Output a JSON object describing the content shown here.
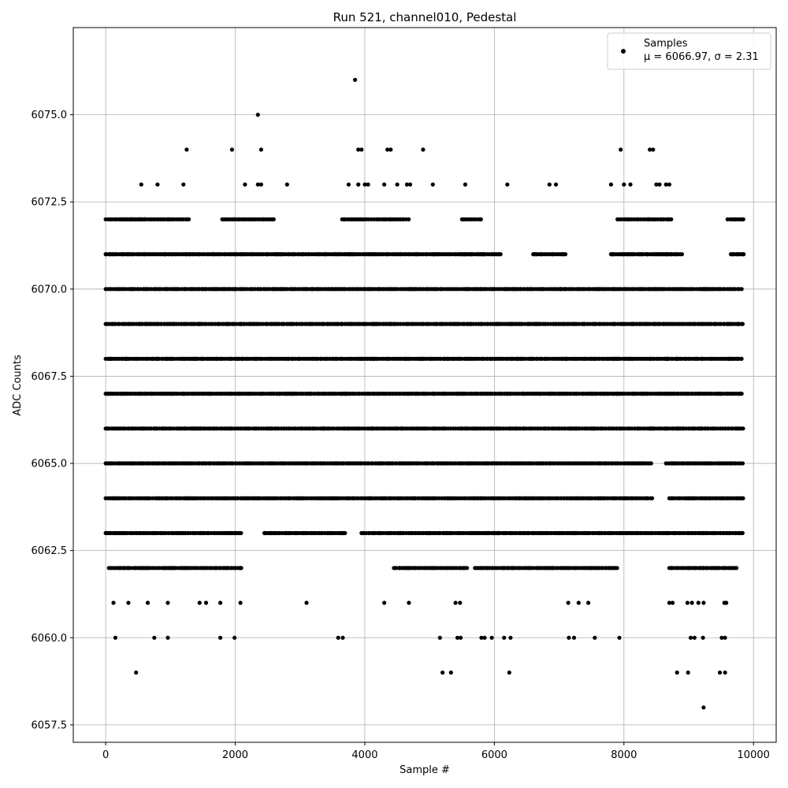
{
  "chart_data": {
    "type": "scatter",
    "title": "Run 521, channel010, Pedestal",
    "xlabel": "Sample #",
    "ylabel": "ADC Counts",
    "xlim": [
      -500,
      10350
    ],
    "ylim": [
      6057.0,
      6077.5
    ],
    "xticks": [
      0,
      2000,
      4000,
      6000,
      8000,
      10000
    ],
    "xtick_labels": [
      "0",
      "2000",
      "4000",
      "6000",
      "8000",
      "10000"
    ],
    "yticks": [
      6057.5,
      6060.0,
      6062.5,
      6065.0,
      6067.5,
      6070.0,
      6072.5,
      6075.0
    ],
    "ytick_labels": [
      "6057.5",
      "6060.0",
      "6062.5",
      "6065.0",
      "6067.5",
      "6070.0",
      "6072.5",
      "6075.0"
    ],
    "grid": true,
    "legend_position": "top-right",
    "marker_color": "#000000",
    "series": [
      {
        "name": "Samples",
        "stats_label": "μ = 6066.97, σ = 2.31",
        "levels": [
          {
            "y": 6070,
            "x_ranges": [
              [
                0,
                9850
              ]
            ]
          },
          {
            "y": 6069,
            "x_ranges": [
              [
                0,
                9850
              ]
            ]
          },
          {
            "y": 6068,
            "x_ranges": [
              [
                0,
                9850
              ]
            ]
          },
          {
            "y": 6067,
            "x_ranges": [
              [
                0,
                9850
              ]
            ]
          },
          {
            "y": 6066,
            "x_ranges": [
              [
                0,
                9850
              ]
            ]
          },
          {
            "y": 6065,
            "x_ranges": [
              [
                0,
                8450
              ],
              [
                8650,
                9850
              ]
            ]
          },
          {
            "y": 6064,
            "x_ranges": [
              [
                0,
                8450
              ],
              [
                8700,
                9850
              ]
            ]
          },
          {
            "y": 6063,
            "x_ranges": [
              [
                0,
                2100
              ],
              [
                2450,
                3700
              ],
              [
                3950,
                4550
              ],
              [
                4550,
                8900
              ],
              [
                8900,
                9850
              ]
            ]
          },
          {
            "y": 6072,
            "x_ranges": [
              [
                0,
                600
              ],
              [
                250,
                1300
              ],
              [
                1800,
                2600
              ],
              [
                3650,
                4700
              ],
              [
                5500,
                5800
              ],
              [
                7900,
                8750
              ],
              [
                9600,
                9850
              ]
            ]
          },
          {
            "y": 6071,
            "x_ranges": [
              [
                0,
                2100
              ],
              [
                2100,
                5600
              ],
              [
                5500,
                6100
              ],
              [
                6600,
                7100
              ],
              [
                7800,
                8900
              ],
              [
                9650,
                9850
              ]
            ]
          },
          {
            "y": 6062,
            "x_ranges": [
              [
                50,
                2100
              ],
              [
                4450,
                5600
              ],
              [
                5700,
                6800
              ],
              [
                6800,
                7900
              ],
              [
                8700,
                9750
              ]
            ]
          }
        ],
        "sparse_points": [
          [
            550,
            6073
          ],
          [
            800,
            6073
          ],
          [
            1200,
            6073
          ],
          [
            1250,
            6074
          ],
          [
            1950,
            6074
          ],
          [
            2150,
            6073
          ],
          [
            2350,
            6073
          ],
          [
            2400,
            6073
          ],
          [
            2350,
            6075
          ],
          [
            2400,
            6074
          ],
          [
            2800,
            6073
          ],
          [
            3750,
            6073
          ],
          [
            3850,
            6076
          ],
          [
            3900,
            6074
          ],
          [
            3950,
            6074
          ],
          [
            3900,
            6073
          ],
          [
            4000,
            6073
          ],
          [
            4050,
            6073
          ],
          [
            4300,
            6073
          ],
          [
            4350,
            6074
          ],
          [
            4400,
            6074
          ],
          [
            4500,
            6073
          ],
          [
            4650,
            6073
          ],
          [
            4700,
            6073
          ],
          [
            4900,
            6074
          ],
          [
            5050,
            6073
          ],
          [
            5550,
            6073
          ],
          [
            6200,
            6073
          ],
          [
            6850,
            6073
          ],
          [
            6950,
            6073
          ],
          [
            7800,
            6073
          ],
          [
            7950,
            6074
          ],
          [
            8000,
            6073
          ],
          [
            8100,
            6073
          ],
          [
            8400,
            6074
          ],
          [
            8450,
            6074
          ],
          [
            8500,
            6073
          ],
          [
            8550,
            6073
          ],
          [
            8650,
            6073
          ],
          [
            8700,
            6073
          ],
          [
            120,
            6061
          ],
          [
            650,
            6061
          ],
          [
            960,
            6061
          ],
          [
            1450,
            6061
          ],
          [
            1550,
            6061
          ],
          [
            1770,
            6061
          ],
          [
            2080,
            6061
          ],
          [
            3100,
            6061
          ],
          [
            4680,
            6061
          ],
          [
            5400,
            6061
          ],
          [
            5470,
            6061
          ],
          [
            7140,
            6061
          ],
          [
            7300,
            6061
          ],
          [
            7450,
            6061
          ],
          [
            8700,
            6061
          ],
          [
            8750,
            6061
          ],
          [
            8980,
            6061
          ],
          [
            9050,
            6061
          ],
          [
            9150,
            6061
          ],
          [
            9230,
            6061
          ],
          [
            9550,
            6061
          ],
          [
            9580,
            6061
          ],
          [
            150,
            6060
          ],
          [
            750,
            6060
          ],
          [
            960,
            6060
          ],
          [
            1770,
            6060
          ],
          [
            1990,
            6060
          ],
          [
            3590,
            6060
          ],
          [
            3660,
            6060
          ],
          [
            5160,
            6060
          ],
          [
            5430,
            6060
          ],
          [
            5480,
            6060
          ],
          [
            5800,
            6060
          ],
          [
            5850,
            6060
          ],
          [
            5960,
            6060
          ],
          [
            6150,
            6060
          ],
          [
            6250,
            6060
          ],
          [
            7150,
            6060
          ],
          [
            7230,
            6060
          ],
          [
            7550,
            6060
          ],
          [
            7930,
            6060
          ],
          [
            9030,
            6060
          ],
          [
            9090,
            6060
          ],
          [
            9220,
            6060
          ],
          [
            9510,
            6060
          ],
          [
            9560,
            6060
          ],
          [
            470,
            6059
          ],
          [
            5200,
            6059
          ],
          [
            5330,
            6059
          ],
          [
            6230,
            6059
          ],
          [
            8820,
            6059
          ],
          [
            8990,
            6059
          ],
          [
            9480,
            6059
          ],
          [
            9560,
            6059
          ],
          [
            9230,
            6058
          ],
          [
            350,
            6061
          ],
          [
            4300,
            6061
          ]
        ]
      }
    ]
  }
}
